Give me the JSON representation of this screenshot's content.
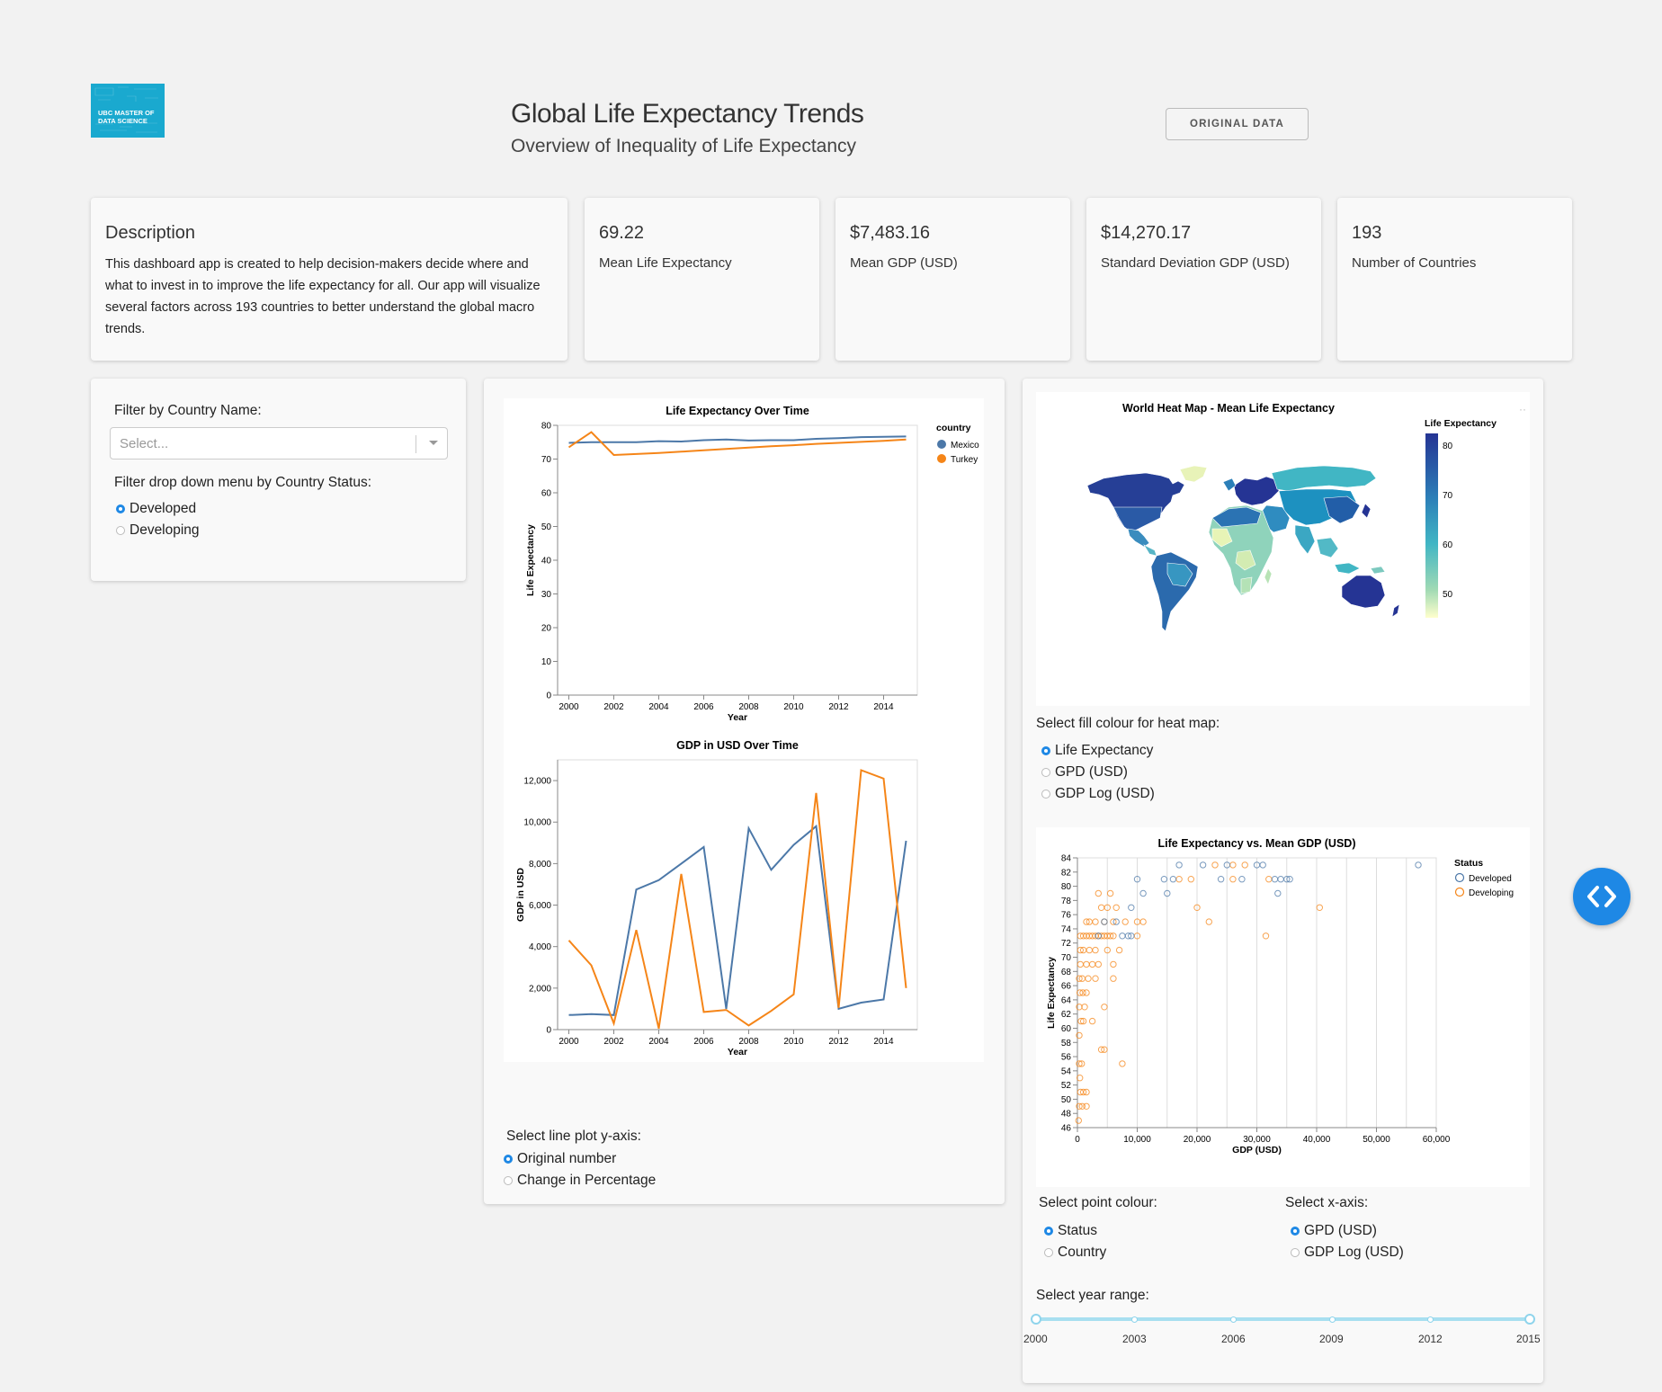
{
  "header": {
    "logo_text": "UBC MASTER OF DATA SCIENCE",
    "title": "Global Life Expectancy Trends",
    "subtitle": "Overview of Inequality of Life Expectancy",
    "original_data_button": "ORIGINAL DATA"
  },
  "description": {
    "title": "Description",
    "text": "This dashboard app is created to help decision-makers decide where and what to invest in to improve the life expectancy for all. Our app will visualize several factors across 193 countries to better understand the global macro trends."
  },
  "stats": [
    {
      "value": "69.22",
      "label": "Mean Life Expectancy"
    },
    {
      "value": "$7,483.16",
      "label": "Mean GDP (USD)"
    },
    {
      "value": "$14,270.17",
      "label": "Standard Deviation GDP (USD)"
    },
    {
      "value": "193",
      "label": "Number of Countries"
    }
  ],
  "filters": {
    "country_label": "Filter by Country Name:",
    "country_placeholder": "Select...",
    "status_label": "Filter drop down menu by Country Status:",
    "status_options": [
      {
        "label": "Developed",
        "selected": true
      },
      {
        "label": "Developing",
        "selected": false
      }
    ]
  },
  "line_controls": {
    "label": "Select line plot y-axis:",
    "options": [
      {
        "label": "Original number",
        "selected": true
      },
      {
        "label": "Change in Percentage",
        "selected": false
      }
    ]
  },
  "map": {
    "title": "World Heat Map - Mean Life Expectancy",
    "legend_title": "Life Expectancy",
    "legend_ticks": [
      "80",
      "70",
      "60",
      "50"
    ],
    "fill_label": "Select fill colour for heat map:",
    "fill_options": [
      {
        "label": "Life Expectancy",
        "selected": true
      },
      {
        "label": "GPD (USD)",
        "selected": false
      },
      {
        "label": "GDP Log (USD)",
        "selected": false
      }
    ]
  },
  "scatter_controls": {
    "point_colour_label": "Select point colour:",
    "point_colour_options": [
      {
        "label": "Status",
        "selected": true
      },
      {
        "label": "Country",
        "selected": false
      }
    ],
    "x_axis_label": "Select x-axis:",
    "x_axis_options": [
      {
        "label": "GPD (USD)",
        "selected": true
      },
      {
        "label": "GDP Log (USD)",
        "selected": false
      }
    ]
  },
  "year_range": {
    "label": "Select year range:",
    "marks": [
      "2000",
      "2003",
      "2006",
      "2009",
      "2012",
      "2015"
    ],
    "min": 2000,
    "max": 2015,
    "value": [
      2000,
      2015
    ]
  },
  "colors": {
    "mexico": "#4c78a8",
    "turkey": "#f58518",
    "accent": "#1e88e5"
  },
  "chart_data": [
    {
      "type": "line",
      "title": "Life Expectancy Over Time",
      "xlabel": "Year",
      "ylabel": "Life Expectancy",
      "x": [
        2000,
        2001,
        2002,
        2003,
        2004,
        2005,
        2006,
        2007,
        2008,
        2009,
        2010,
        2011,
        2012,
        2013,
        2014,
        2015
      ],
      "xticks": [
        2000,
        2002,
        2004,
        2006,
        2008,
        2010,
        2012,
        2014
      ],
      "yticks": [
        0,
        10,
        20,
        30,
        40,
        50,
        60,
        70,
        80
      ],
      "xlim": [
        1999.5,
        2015.5
      ],
      "ylim": [
        0,
        80
      ],
      "legend_title": "country",
      "series": [
        {
          "name": "Mexico",
          "color": "#4c78a8",
          "values": [
            74.8,
            75.0,
            75.0,
            75.0,
            75.3,
            75.2,
            75.6,
            75.8,
            75.5,
            75.6,
            75.6,
            76.0,
            76.2,
            76.5,
            76.6,
            76.7
          ]
        },
        {
          "name": "Turkey",
          "color": "#f58518",
          "values": [
            73.5,
            78.0,
            71.2,
            71.5,
            71.8,
            72.2,
            72.6,
            73.0,
            73.4,
            73.8,
            74.1,
            74.5,
            74.8,
            75.1,
            75.4,
            75.8
          ]
        }
      ]
    },
    {
      "type": "line",
      "title": "GDP in USD Over Time",
      "xlabel": "Year",
      "ylabel": "GDP in USD",
      "x": [
        2000,
        2001,
        2002,
        2003,
        2004,
        2005,
        2006,
        2007,
        2008,
        2009,
        2010,
        2011,
        2012,
        2013,
        2014,
        2015
      ],
      "xticks": [
        2000,
        2002,
        2004,
        2006,
        2008,
        2010,
        2012,
        2014
      ],
      "yticks": [
        0,
        2000,
        4000,
        6000,
        8000,
        10000,
        12000
      ],
      "ytick_labels": [
        "0",
        "2,000",
        "4,000",
        "6,000",
        "8,000",
        "10,000",
        "12,000"
      ],
      "xlim": [
        1999.5,
        2015.5
      ],
      "ylim": [
        0,
        13000
      ],
      "series": [
        {
          "name": "Mexico",
          "color": "#4c78a8",
          "values": [
            700,
            750,
            700,
            6750,
            7200,
            8000,
            8800,
            1000,
            9700,
            7700,
            8900,
            9800,
            1000,
            1300,
            1450,
            9100
          ]
        },
        {
          "name": "Turkey",
          "color": "#f58518",
          "values": [
            4300,
            3100,
            300,
            4800,
            50,
            7500,
            850,
            950,
            200,
            900,
            1700,
            11400,
            1050,
            12500,
            12100,
            2000
          ]
        }
      ]
    },
    {
      "type": "scatter",
      "title": "Life Expectancy vs. Mean GDP (USD)",
      "xlabel": "GDP (USD)",
      "ylabel": "Life Expectancy",
      "xlim": [
        0,
        60000
      ],
      "ylim": [
        46,
        84
      ],
      "xticks": [
        0,
        10000,
        20000,
        30000,
        40000,
        50000,
        60000
      ],
      "xtick_labels": [
        "0",
        "10,000",
        "20,000",
        "30,000",
        "40,000",
        "50,000",
        "60,000"
      ],
      "yticks": [
        46,
        48,
        50,
        52,
        54,
        56,
        58,
        60,
        62,
        64,
        66,
        68,
        70,
        72,
        74,
        76,
        78,
        80,
        82,
        84
      ],
      "legend_title": "Status",
      "series": [
        {
          "name": "Developed",
          "color": "#4c78a8",
          "points": [
            [
              17000,
              83
            ],
            [
              21000,
              83
            ],
            [
              25000,
              83
            ],
            [
              30000,
              83
            ],
            [
              31000,
              83
            ],
            [
              57000,
              83
            ],
            [
              10000,
              81
            ],
            [
              14500,
              81
            ],
            [
              16000,
              81
            ],
            [
              24000,
              81
            ],
            [
              27500,
              81
            ],
            [
              33000,
              81
            ],
            [
              34000,
              81
            ],
            [
              35000,
              81
            ],
            [
              35500,
              81
            ],
            [
              11000,
              79
            ],
            [
              15000,
              79
            ],
            [
              33500,
              79
            ],
            [
              9000,
              77
            ],
            [
              6500,
              75
            ],
            [
              7500,
              73
            ],
            [
              8500,
              73
            ],
            [
              9000,
              73
            ],
            [
              4500,
              75
            ],
            [
              3500,
              73
            ]
          ]
        },
        {
          "name": "Developing",
          "color": "#f58518",
          "points": [
            [
              23000,
              83
            ],
            [
              26000,
              83
            ],
            [
              28000,
              83
            ],
            [
              17000,
              81
            ],
            [
              19000,
              81
            ],
            [
              26000,
              81
            ],
            [
              32000,
              81
            ],
            [
              3500,
              79
            ],
            [
              5500,
              79
            ],
            [
              20000,
              77
            ],
            [
              40500,
              77
            ],
            [
              4000,
              77
            ],
            [
              5000,
              77
            ],
            [
              6500,
              77
            ],
            [
              1500,
              75
            ],
            [
              2000,
              75
            ],
            [
              3000,
              75
            ],
            [
              4500,
              75
            ],
            [
              6000,
              75
            ],
            [
              8000,
              75
            ],
            [
              10000,
              75
            ],
            [
              11000,
              75
            ],
            [
              22000,
              75
            ],
            [
              500,
              73
            ],
            [
              1000,
              73
            ],
            [
              1500,
              73
            ],
            [
              2000,
              73
            ],
            [
              2500,
              73
            ],
            [
              3000,
              73
            ],
            [
              3500,
              73
            ],
            [
              4000,
              73
            ],
            [
              4500,
              73
            ],
            [
              5000,
              73
            ],
            [
              5500,
              73
            ],
            [
              6000,
              73
            ],
            [
              10000,
              73
            ],
            [
              31500,
              73
            ],
            [
              500,
              71
            ],
            [
              1000,
              71
            ],
            [
              2000,
              71
            ],
            [
              3000,
              71
            ],
            [
              5000,
              71
            ],
            [
              7000,
              71
            ],
            [
              500,
              69
            ],
            [
              1500,
              69
            ],
            [
              2500,
              69
            ],
            [
              3500,
              69
            ],
            [
              6000,
              69
            ],
            [
              300,
              67
            ],
            [
              800,
              67
            ],
            [
              1800,
              67
            ],
            [
              3000,
              67
            ],
            [
              6000,
              67
            ],
            [
              400,
              65
            ],
            [
              900,
              65
            ],
            [
              1500,
              65
            ],
            [
              300,
              63
            ],
            [
              1200,
              63
            ],
            [
              4500,
              63
            ],
            [
              600,
              61
            ],
            [
              1000,
              61
            ],
            [
              2500,
              61
            ],
            [
              300,
              59
            ],
            [
              4000,
              57
            ],
            [
              4500,
              57
            ],
            [
              300,
              55
            ],
            [
              700,
              55
            ],
            [
              7500,
              55
            ],
            [
              400,
              53
            ],
            [
              500,
              51
            ],
            [
              1000,
              51
            ],
            [
              1500,
              51
            ],
            [
              300,
              49
            ],
            [
              800,
              49
            ],
            [
              1500,
              49
            ],
            [
              200,
              47
            ]
          ]
        }
      ]
    }
  ]
}
